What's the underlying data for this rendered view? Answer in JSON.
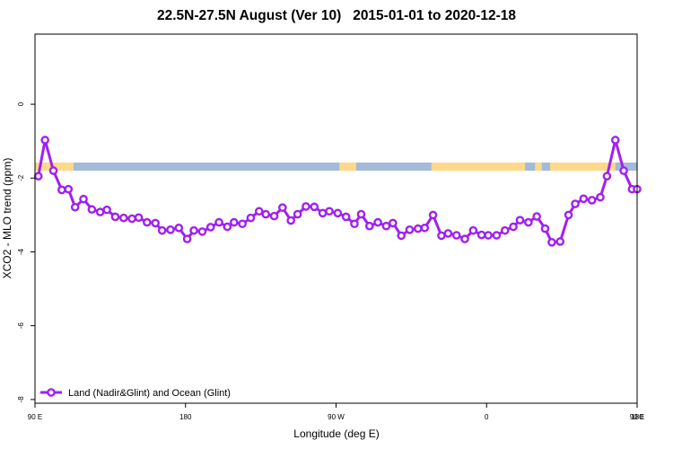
{
  "chart_data": {
    "type": "line",
    "title": "22.5N-27.5N August (Ver 10)   2015-01-01 to 2020-12-18",
    "xlabel": "Longitude (deg E)",
    "ylabel": "XCO2 - MLO trend (ppm)",
    "xlim": [
      90,
      450
    ],
    "ylim": [
      -8.1,
      1.9
    ],
    "x_ticks": [
      90,
      180,
      270,
      360,
      450,
      540
    ],
    "x_tick_labels": [
      "90 E",
      "180",
      "90 W",
      "0",
      "90 E",
      "180"
    ],
    "y_ticks": [
      0,
      -2,
      -4,
      -6,
      -8
    ],
    "y_tick_labels": [
      "0",
      "-2",
      "-4",
      "-6",
      "-8"
    ],
    "grid": false,
    "legend_position": "bottom-left",
    "land_ocean_strip": {
      "y_range": [
        -1.8,
        -1.58
      ],
      "ocean_color": "#A3BBD9",
      "land_color": "#FFD98A",
      "land_segments": [
        [
          90,
          113
        ],
        [
          272,
          275
        ],
        [
          275,
          282
        ],
        [
          327,
          332
        ],
        [
          328,
          375
        ],
        [
          370,
          383
        ],
        [
          389,
          393
        ],
        [
          398,
          430
        ],
        [
          430,
          437
        ]
      ]
    },
    "series": [
      {
        "name": "Land (Nadir&Glint) and Ocean (Glint)",
        "color": "#A020F0",
        "x": [
          92,
          96,
          101,
          106,
          110,
          114,
          119,
          124,
          129,
          133,
          138,
          143,
          148,
          152,
          157,
          162,
          166,
          171,
          176,
          181,
          185,
          190,
          195,
          200,
          205,
          209,
          214,
          219,
          224,
          228,
          233,
          238,
          243,
          247,
          252,
          257,
          262,
          266,
          271,
          276,
          281,
          285,
          290,
          295,
          300,
          304,
          309,
          314,
          319,
          323,
          328,
          333,
          337,
          342,
          347,
          352,
          357,
          361,
          366,
          371,
          376,
          380,
          385,
          390,
          395,
          399,
          404,
          409,
          413,
          418,
          423,
          428,
          432,
          437,
          442,
          447,
          450
        ],
        "values": [
          -1.95,
          -0.97,
          -1.8,
          -2.32,
          -2.3,
          -2.79,
          -2.57,
          -2.85,
          -2.92,
          -2.86,
          -3.05,
          -3.08,
          -3.1,
          -3.07,
          -3.2,
          -3.22,
          -3.42,
          -3.4,
          -3.35,
          -3.65,
          -3.42,
          -3.45,
          -3.33,
          -3.2,
          -3.32,
          -3.2,
          -3.24,
          -3.08,
          -2.9,
          -2.98,
          -3.03,
          -2.8,
          -3.15,
          -2.98,
          -2.77,
          -2.78,
          -2.95,
          -2.9,
          -2.95,
          -3.05,
          -3.24,
          -2.98,
          -3.3,
          -3.2,
          -3.3,
          -3.22,
          -3.56,
          -3.4,
          -3.37,
          -3.35,
          -3.0,
          -3.56,
          -3.5,
          -3.55,
          -3.65,
          -3.42,
          -3.54,
          -3.55,
          -3.55,
          -3.42,
          -3.32,
          -3.14,
          -3.2,
          -3.04,
          -3.37,
          -3.74,
          -3.72,
          -3.0,
          -2.7,
          -2.56,
          -2.6,
          -2.52,
          -1.95,
          -0.97,
          -1.8,
          -2.3,
          -2.3
        ]
      }
    ]
  }
}
